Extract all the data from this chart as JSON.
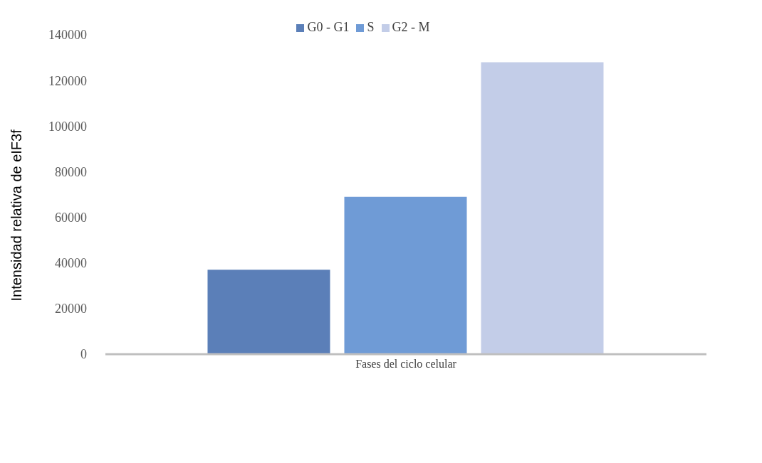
{
  "chart_data": {
    "type": "bar",
    "categories": [
      "Fases del ciclo celular"
    ],
    "ylabel": "Intensidad relativa de eIF3f",
    "series": [
      {
        "name": "G0 - G1",
        "color": "#5b7fb8",
        "values": [
          37000
        ]
      },
      {
        "name": "S",
        "color": "#6f9bd6",
        "values": [
          69000
        ]
      },
      {
        "name": "G2 - M",
        "color": "#c3cde8",
        "values": [
          128000
        ]
      }
    ],
    "ylim": [
      0,
      140000
    ],
    "yticks": [
      0,
      20000,
      40000,
      60000,
      80000,
      100000,
      120000,
      140000
    ],
    "grid": false,
    "legend": "top"
  }
}
